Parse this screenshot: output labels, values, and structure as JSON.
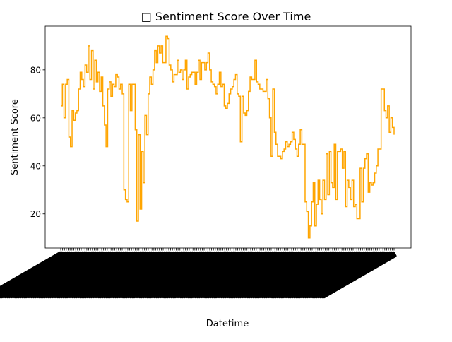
{
  "chart_data": {
    "type": "line",
    "title": "□ Sentiment Score Over Time",
    "xlabel": "Datetime",
    "ylabel": "Sentiment Score",
    "ylim": [
      5.8,
      98.2
    ],
    "yticks": [
      20,
      40,
      60,
      80
    ],
    "xtick_labels_legible": false,
    "grid": false,
    "legend": "none",
    "line_color": "#ffa500",
    "series": [
      {
        "values": [
          65,
          74,
          60,
          74,
          76,
          52,
          48,
          63,
          59,
          62,
          63,
          72,
          79,
          76,
          73,
          82,
          79,
          90,
          76,
          88,
          72,
          84,
          75,
          79,
          71,
          77,
          65,
          57,
          48,
          72,
          75,
          69,
          74,
          73,
          78,
          77,
          72,
          74,
          70,
          30,
          26,
          25,
          74,
          63,
          74,
          74,
          55,
          17,
          53,
          22,
          46,
          33,
          61,
          53,
          70,
          77,
          74,
          80,
          88,
          83,
          90,
          87,
          90,
          83,
          83,
          94,
          93,
          82,
          80,
          75,
          78,
          78,
          84,
          79,
          80,
          76,
          80,
          84,
          72,
          77,
          78,
          79,
          79,
          74,
          79,
          84,
          76,
          83,
          83,
          80,
          83,
          87,
          80,
          75,
          74,
          73,
          70,
          74,
          79,
          73,
          74,
          65,
          64,
          66,
          70,
          72,
          73,
          76,
          78,
          70,
          69,
          50,
          69,
          62,
          61,
          63,
          71,
          77,
          76,
          76,
          84,
          75,
          74,
          72,
          72,
          71,
          71,
          76,
          68,
          60,
          44,
          72,
          54,
          49,
          44,
          44,
          43,
          46,
          47,
          50,
          48,
          49,
          50,
          54,
          51,
          47,
          44,
          49,
          55,
          49,
          49,
          25,
          21,
          10,
          15,
          25,
          33,
          15,
          24,
          34,
          26,
          20,
          34,
          26,
          45,
          28,
          46,
          33,
          31,
          49,
          26,
          46,
          46,
          47,
          39,
          46,
          23,
          34,
          31,
          26,
          34,
          23,
          24,
          18,
          18,
          39,
          25,
          39,
          43,
          45,
          29,
          33,
          32,
          33,
          37,
          40,
          47,
          47,
          72,
          72,
          63,
          60,
          65,
          54,
          60,
          56,
          53
        ]
      }
    ]
  }
}
